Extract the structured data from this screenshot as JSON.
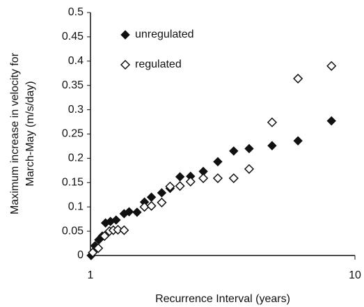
{
  "chart_data": {
    "type": "scatter",
    "xlabel": "Recurrence Interval (years)",
    "ylabel": [
      "Maximum increase in velocity for",
      "March-May  (m/s/day)"
    ],
    "xscale": "log",
    "xlim": [
      1,
      10
    ],
    "xticks": [
      1,
      10
    ],
    "ylim": [
      0,
      0.5
    ],
    "yticks": [
      0,
      0.05,
      0.1,
      0.15,
      0.2,
      0.25,
      0.3,
      0.35,
      0.4,
      0.45,
      0.5
    ],
    "legend": "upper left",
    "series": [
      {
        "name": "unregulated",
        "color": "#111111",
        "marker": "filled-diamond",
        "x": [
          1.006,
          1.04,
          1.075,
          1.108,
          1.14,
          1.19,
          1.25,
          1.34,
          1.4,
          1.5,
          1.6,
          1.7,
          1.86,
          2.0,
          2.18,
          2.39,
          2.67,
          3.03,
          3.48,
          3.98,
          4.86,
          6.09,
          8.15
        ],
        "values": [
          0,
          0.02,
          0.032,
          0.04,
          0.067,
          0.07,
          0.073,
          0.086,
          0.09,
          0.089,
          0.11,
          0.12,
          0.129,
          0.138,
          0.162,
          0.163,
          0.173,
          0.193,
          0.215,
          0.22,
          0.226,
          0.236,
          0.277
        ]
      },
      {
        "name": "regulated",
        "color": "#111111",
        "marker": "open-diamond",
        "x": [
          1.02,
          1.07,
          1.13,
          1.18,
          1.22,
          1.27,
          1.34,
          1.6,
          1.7,
          1.86,
          2.0,
          2.18,
          2.39,
          2.67,
          3.03,
          3.48,
          3.98,
          4.86,
          6.09,
          8.15
        ],
        "values": [
          0.006,
          0.015,
          0.04,
          0.05,
          0.052,
          0.053,
          0.052,
          0.1,
          0.102,
          0.109,
          0.142,
          0.143,
          0.152,
          0.159,
          0.159,
          0.159,
          0.178,
          0.274,
          0.364,
          0.39
        ]
      }
    ]
  }
}
